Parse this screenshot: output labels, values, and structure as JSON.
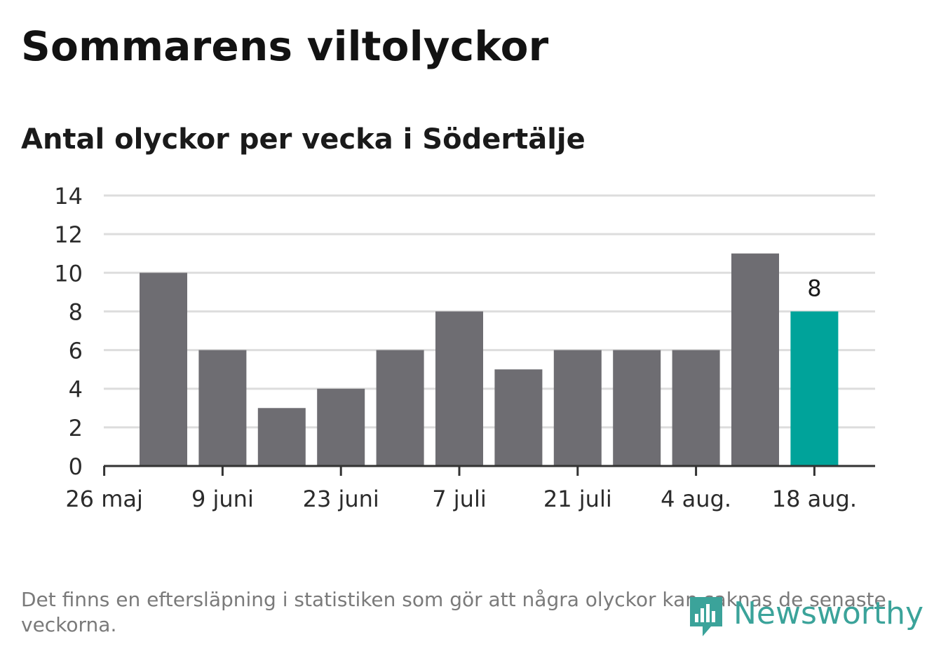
{
  "title": "Sommarens viltolyckor",
  "subtitle": "Antal olyckor per vecka i Södertälje",
  "footnote": "Det finns en eftersläpning i statistiken som gör att några olyckor kan saknas de senaste veckorna.",
  "logo": {
    "text": "Newsworthy",
    "icon": "newsworthy-bar-chart-speech-bubble-icon",
    "color": "#3ba39a"
  },
  "colors": {
    "bar": "#6e6d72",
    "highlight": "#00a39a",
    "grid": "#dddddd",
    "axis": "#333333"
  },
  "chart_data": {
    "type": "bar",
    "title": "Antal olyckor per vecka i Södertälje",
    "xlabel": "",
    "ylabel": "",
    "ylim": [
      0,
      14
    ],
    "yticks": [
      0,
      2,
      4,
      6,
      8,
      10,
      12,
      14
    ],
    "xtick_labels": [
      "26 maj",
      "9 juni",
      "23 juni",
      "7 juli",
      "21 juli",
      "4 aug.",
      "18 aug."
    ],
    "values": [
      10,
      6,
      3,
      4,
      6,
      8,
      5,
      6,
      6,
      6,
      11,
      8
    ],
    "highlight_index": 11,
    "annotations": [
      {
        "index": 11,
        "text": "8"
      }
    ],
    "grid": true
  }
}
